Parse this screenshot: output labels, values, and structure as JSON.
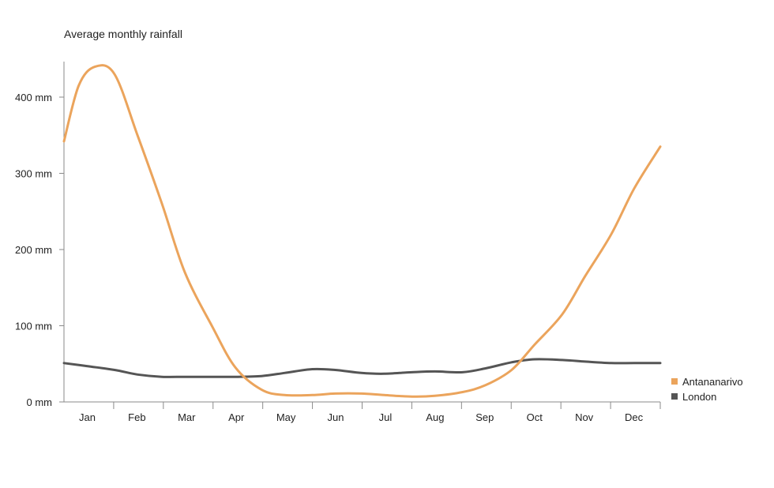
{
  "chart_data": {
    "type": "line",
    "title": "Average monthly rainfall",
    "xlabel": "",
    "ylabel": "",
    "categories": [
      "Jan",
      "Feb",
      "Mar",
      "Apr",
      "May",
      "Jun",
      "Jul",
      "Aug",
      "Sep",
      "Oct",
      "Nov",
      "Dec"
    ],
    "yticks": [
      "0 mm",
      "100 mm",
      "200 mm",
      "300 mm",
      "400 mm"
    ],
    "ylim": [
      0,
      450
    ],
    "grid": false,
    "legend_position": "right",
    "series": [
      {
        "name": "Antananarivo",
        "color": "#eba45c",
        "x": [
          "2000-01-01",
          "2000-01-10",
          "2000-01-20",
          "2000-02-01",
          "2000-02-15",
          "2000-03-01",
          "2000-03-15",
          "2000-04-01",
          "2000-04-15",
          "2000-05-01",
          "2000-05-15",
          "2000-06-01",
          "2000-06-15",
          "2000-07-01",
          "2000-07-15",
          "2000-08-01",
          "2000-08-15",
          "2000-09-01",
          "2000-09-15",
          "2000-10-01",
          "2000-10-15",
          "2000-11-01",
          "2000-11-15",
          "2000-12-01",
          "2000-12-15",
          "2000-12-31"
        ],
        "values": [
          342,
          415,
          440,
          430,
          350,
          260,
          170,
          98,
          45,
          16,
          9,
          9,
          11,
          11,
          9,
          7,
          8,
          13,
          22,
          42,
          75,
          115,
          165,
          220,
          280,
          335
        ]
      },
      {
        "name": "London",
        "color": "#555555",
        "x": [
          "2000-01-01",
          "2000-01-15",
          "2000-02-01",
          "2000-02-15",
          "2000-03-01",
          "2000-03-15",
          "2000-04-01",
          "2000-04-15",
          "2000-05-01",
          "2000-05-15",
          "2000-06-01",
          "2000-06-15",
          "2000-07-01",
          "2000-07-15",
          "2000-08-01",
          "2000-08-15",
          "2000-09-01",
          "2000-09-15",
          "2000-10-01",
          "2000-10-15",
          "2000-11-01",
          "2000-11-15",
          "2000-12-01",
          "2000-12-15",
          "2000-12-31"
        ],
        "values": [
          51,
          47,
          42,
          36,
          33,
          33,
          33,
          33,
          34,
          38,
          43,
          42,
          38,
          37,
          39,
          40,
          39,
          44,
          52,
          56,
          55,
          53,
          51,
          51,
          51
        ]
      }
    ]
  }
}
